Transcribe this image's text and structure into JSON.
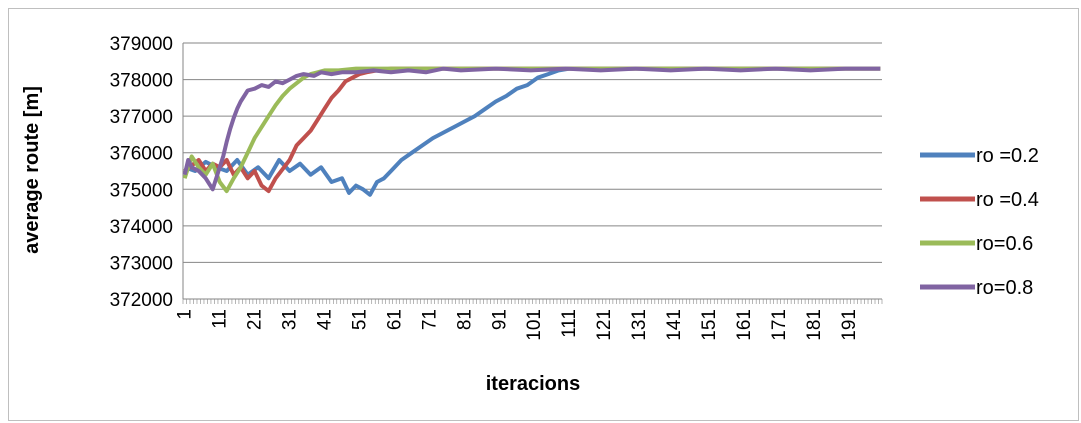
{
  "chart_data": {
    "type": "line",
    "title": "",
    "xlabel": "iteracions",
    "ylabel": "average route [m]",
    "ylim": [
      372000,
      379000
    ],
    "yticks": [
      372000,
      373000,
      374000,
      375000,
      376000,
      377000,
      378000,
      379000
    ],
    "xlim": [
      1,
      200
    ],
    "xtick_labels": [
      "1",
      "11",
      "21",
      "31",
      "41",
      "51",
      "61",
      "71",
      "81",
      "91",
      "101",
      "111",
      "121",
      "131",
      "141",
      "151",
      "161",
      "171",
      "181",
      "191"
    ],
    "grid": "horizontal",
    "legend_position": "right",
    "series": [
      {
        "name": "ro =0.2",
        "color": "#4f81bd",
        "points": [
          [
            1,
            375600
          ],
          [
            4,
            375500
          ],
          [
            7,
            375750
          ],
          [
            10,
            375600
          ],
          [
            13,
            375500
          ],
          [
            16,
            375800
          ],
          [
            19,
            375400
          ],
          [
            22,
            375600
          ],
          [
            25,
            375300
          ],
          [
            28,
            375800
          ],
          [
            31,
            375500
          ],
          [
            34,
            375700
          ],
          [
            37,
            375400
          ],
          [
            40,
            375600
          ],
          [
            43,
            375200
          ],
          [
            46,
            375300
          ],
          [
            48,
            374900
          ],
          [
            50,
            375100
          ],
          [
            52,
            375000
          ],
          [
            54,
            374850
          ],
          [
            56,
            375200
          ],
          [
            58,
            375300
          ],
          [
            60,
            375500
          ],
          [
            63,
            375800
          ],
          [
            66,
            376000
          ],
          [
            69,
            376200
          ],
          [
            72,
            376400
          ],
          [
            75,
            376550
          ],
          [
            78,
            376700
          ],
          [
            81,
            376850
          ],
          [
            84,
            377000
          ],
          [
            87,
            377200
          ],
          [
            90,
            377400
          ],
          [
            93,
            377550
          ],
          [
            96,
            377750
          ],
          [
            99,
            377850
          ],
          [
            102,
            378050
          ],
          [
            105,
            378150
          ],
          [
            108,
            378250
          ],
          [
            111,
            378300
          ],
          [
            115,
            378300
          ],
          [
            120,
            378300
          ],
          [
            130,
            378300
          ],
          [
            140,
            378300
          ],
          [
            150,
            378300
          ],
          [
            160,
            378300
          ],
          [
            170,
            378300
          ],
          [
            180,
            378300
          ],
          [
            190,
            378300
          ],
          [
            200,
            378300
          ]
        ]
      },
      {
        "name": "ro =0.4",
        "color": "#c0504d",
        "points": [
          [
            1,
            375500
          ],
          [
            3,
            375650
          ],
          [
            5,
            375800
          ],
          [
            7,
            375500
          ],
          [
            9,
            375700
          ],
          [
            11,
            375600
          ],
          [
            13,
            375800
          ],
          [
            15,
            375400
          ],
          [
            17,
            375600
          ],
          [
            19,
            375300
          ],
          [
            21,
            375500
          ],
          [
            23,
            375100
          ],
          [
            25,
            374950
          ],
          [
            27,
            375300
          ],
          [
            29,
            375550
          ],
          [
            31,
            375800
          ],
          [
            33,
            376200
          ],
          [
            35,
            376400
          ],
          [
            37,
            376600
          ],
          [
            39,
            376900
          ],
          [
            41,
            377200
          ],
          [
            43,
            377500
          ],
          [
            45,
            377700
          ],
          [
            47,
            377950
          ],
          [
            49,
            378050
          ],
          [
            51,
            378150
          ],
          [
            53,
            378200
          ],
          [
            56,
            378250
          ],
          [
            60,
            378300
          ],
          [
            70,
            378300
          ],
          [
            80,
            378300
          ],
          [
            90,
            378300
          ],
          [
            100,
            378300
          ],
          [
            120,
            378300
          ],
          [
            140,
            378300
          ],
          [
            160,
            378300
          ],
          [
            180,
            378300
          ],
          [
            200,
            378300
          ]
        ]
      },
      {
        "name": "ro=0.6",
        "color": "#9bbb59",
        "points": [
          [
            1,
            375300
          ],
          [
            3,
            375900
          ],
          [
            5,
            375600
          ],
          [
            7,
            375400
          ],
          [
            9,
            375700
          ],
          [
            11,
            375200
          ],
          [
            13,
            374950
          ],
          [
            15,
            375300
          ],
          [
            17,
            375600
          ],
          [
            19,
            376000
          ],
          [
            21,
            376400
          ],
          [
            23,
            376700
          ],
          [
            25,
            377000
          ],
          [
            27,
            377300
          ],
          [
            29,
            377550
          ],
          [
            31,
            377750
          ],
          [
            33,
            377900
          ],
          [
            35,
            378050
          ],
          [
            37,
            378150
          ],
          [
            39,
            378200
          ],
          [
            41,
            378250
          ],
          [
            45,
            378250
          ],
          [
            50,
            378300
          ],
          [
            60,
            378300
          ],
          [
            70,
            378300
          ],
          [
            80,
            378300
          ],
          [
            100,
            378300
          ],
          [
            120,
            378300
          ],
          [
            140,
            378300
          ],
          [
            160,
            378300
          ],
          [
            180,
            378300
          ],
          [
            200,
            378300
          ]
        ]
      },
      {
        "name": "ro=0.8",
        "color": "#8064a2",
        "points": [
          [
            1,
            375400
          ],
          [
            2,
            375800
          ],
          [
            3,
            375600
          ],
          [
            5,
            375500
          ],
          [
            7,
            375300
          ],
          [
            9,
            375000
          ],
          [
            10,
            375300
          ],
          [
            11,
            375600
          ],
          [
            12,
            375900
          ],
          [
            13,
            376300
          ],
          [
            14,
            376650
          ],
          [
            15,
            376950
          ],
          [
            16,
            377200
          ],
          [
            17,
            377400
          ],
          [
            18,
            377550
          ],
          [
            19,
            377700
          ],
          [
            21,
            377750
          ],
          [
            23,
            377850
          ],
          [
            25,
            377800
          ],
          [
            27,
            377950
          ],
          [
            29,
            377900
          ],
          [
            31,
            378000
          ],
          [
            33,
            378100
          ],
          [
            35,
            378150
          ],
          [
            38,
            378100
          ],
          [
            40,
            378200
          ],
          [
            43,
            378150
          ],
          [
            46,
            378200
          ],
          [
            50,
            378200
          ],
          [
            55,
            378250
          ],
          [
            60,
            378200
          ],
          [
            65,
            378250
          ],
          [
            70,
            378200
          ],
          [
            75,
            378300
          ],
          [
            80,
            378250
          ],
          [
            90,
            378300
          ],
          [
            100,
            378250
          ],
          [
            110,
            378300
          ],
          [
            120,
            378250
          ],
          [
            130,
            378300
          ],
          [
            140,
            378250
          ],
          [
            150,
            378300
          ],
          [
            160,
            378250
          ],
          [
            170,
            378300
          ],
          [
            180,
            378250
          ],
          [
            190,
            378300
          ],
          [
            200,
            378300
          ]
        ]
      }
    ]
  }
}
